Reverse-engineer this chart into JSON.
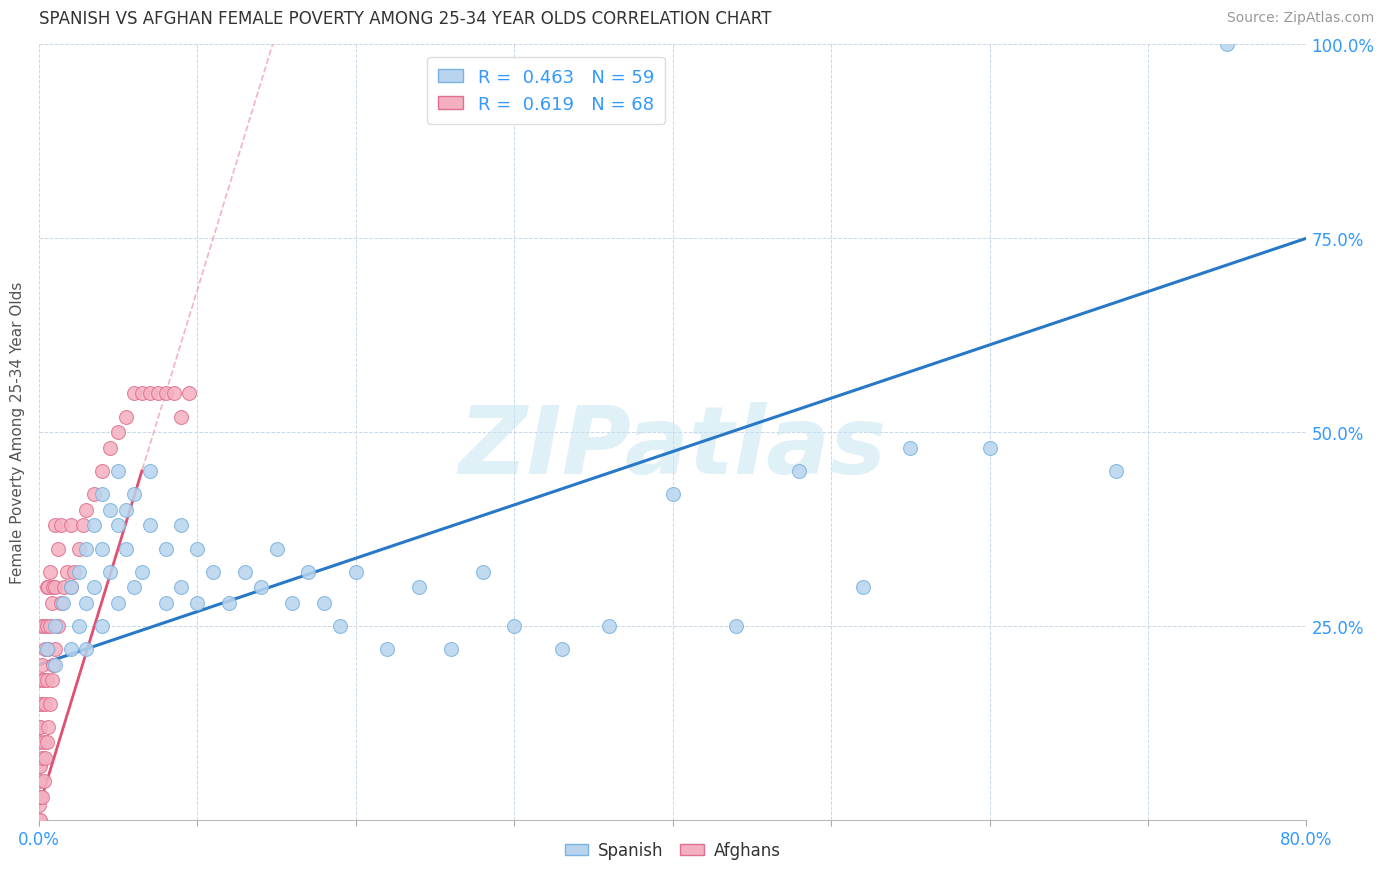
{
  "title": "SPANISH VS AFGHAN FEMALE POVERTY AMONG 25-34 YEAR OLDS CORRELATION CHART",
  "source": "Source: ZipAtlas.com",
  "ylabel": "Female Poverty Among 25-34 Year Olds",
  "watermark": "ZIPatlas",
  "spanish_color": "#b8d4ee",
  "afghan_color": "#f4b0c0",
  "spanish_edge_color": "#7ab3e0",
  "afghan_edge_color": "#e07090",
  "spanish_line_color": "#2878c8",
  "afghan_line_color": "#e05070",
  "afghan_line_dash_color": "#f0a0b0",
  "xlim": [
    0.0,
    0.8
  ],
  "ylim": [
    0.0,
    1.0
  ],
  "xticks": [
    0.0,
    0.1,
    0.2,
    0.3,
    0.4,
    0.5,
    0.6,
    0.7,
    0.8
  ],
  "yticks": [
    0.0,
    0.25,
    0.5,
    0.75,
    1.0
  ],
  "spanish_r": "0.463",
  "spanish_n": "59",
  "afghan_r": "0.619",
  "afghan_n": "68",
  "spanish_x": [
    0.005,
    0.01,
    0.01,
    0.015,
    0.02,
    0.02,
    0.025,
    0.025,
    0.03,
    0.03,
    0.03,
    0.035,
    0.035,
    0.04,
    0.04,
    0.04,
    0.045,
    0.045,
    0.05,
    0.05,
    0.05,
    0.055,
    0.055,
    0.06,
    0.06,
    0.065,
    0.07,
    0.07,
    0.08,
    0.08,
    0.09,
    0.09,
    0.1,
    0.1,
    0.11,
    0.12,
    0.13,
    0.14,
    0.15,
    0.16,
    0.17,
    0.18,
    0.19,
    0.2,
    0.22,
    0.24,
    0.26,
    0.28,
    0.3,
    0.33,
    0.36,
    0.4,
    0.44,
    0.48,
    0.52,
    0.55,
    0.6,
    0.68,
    0.75
  ],
  "spanish_y": [
    0.22,
    0.25,
    0.2,
    0.28,
    0.22,
    0.3,
    0.25,
    0.32,
    0.28,
    0.35,
    0.22,
    0.38,
    0.3,
    0.35,
    0.25,
    0.42,
    0.32,
    0.4,
    0.38,
    0.28,
    0.45,
    0.4,
    0.35,
    0.42,
    0.3,
    0.32,
    0.45,
    0.38,
    0.35,
    0.28,
    0.3,
    0.38,
    0.35,
    0.28,
    0.32,
    0.28,
    0.32,
    0.3,
    0.35,
    0.28,
    0.32,
    0.28,
    0.25,
    0.32,
    0.22,
    0.3,
    0.22,
    0.32,
    0.25,
    0.22,
    0.25,
    0.42,
    0.25,
    0.45,
    0.3,
    0.48,
    0.48,
    0.45,
    1.0
  ],
  "afghan_x": [
    0.0,
    0.0,
    0.0,
    0.0,
    0.0,
    0.0,
    0.0,
    0.0,
    0.0,
    0.001,
    0.001,
    0.001,
    0.001,
    0.001,
    0.002,
    0.002,
    0.002,
    0.002,
    0.002,
    0.003,
    0.003,
    0.003,
    0.003,
    0.004,
    0.004,
    0.004,
    0.005,
    0.005,
    0.005,
    0.005,
    0.006,
    0.006,
    0.006,
    0.007,
    0.007,
    0.007,
    0.008,
    0.008,
    0.009,
    0.009,
    0.01,
    0.01,
    0.01,
    0.012,
    0.012,
    0.014,
    0.014,
    0.016,
    0.018,
    0.02,
    0.02,
    0.022,
    0.025,
    0.028,
    0.03,
    0.035,
    0.04,
    0.045,
    0.05,
    0.055,
    0.06,
    0.065,
    0.07,
    0.075,
    0.08,
    0.085,
    0.09,
    0.095
  ],
  "afghan_y": [
    0.0,
    0.0,
    0.02,
    0.03,
    0.05,
    0.07,
    0.1,
    0.12,
    0.15,
    0.0,
    0.03,
    0.07,
    0.12,
    0.18,
    0.03,
    0.08,
    0.15,
    0.2,
    0.25,
    0.05,
    0.1,
    0.18,
    0.25,
    0.08,
    0.15,
    0.22,
    0.1,
    0.18,
    0.25,
    0.3,
    0.12,
    0.22,
    0.3,
    0.15,
    0.25,
    0.32,
    0.18,
    0.28,
    0.2,
    0.3,
    0.22,
    0.3,
    0.38,
    0.25,
    0.35,
    0.28,
    0.38,
    0.3,
    0.32,
    0.3,
    0.38,
    0.32,
    0.35,
    0.38,
    0.4,
    0.42,
    0.45,
    0.48,
    0.5,
    0.52,
    0.55,
    0.55,
    0.55,
    0.55,
    0.55,
    0.55,
    0.52,
    0.55
  ]
}
